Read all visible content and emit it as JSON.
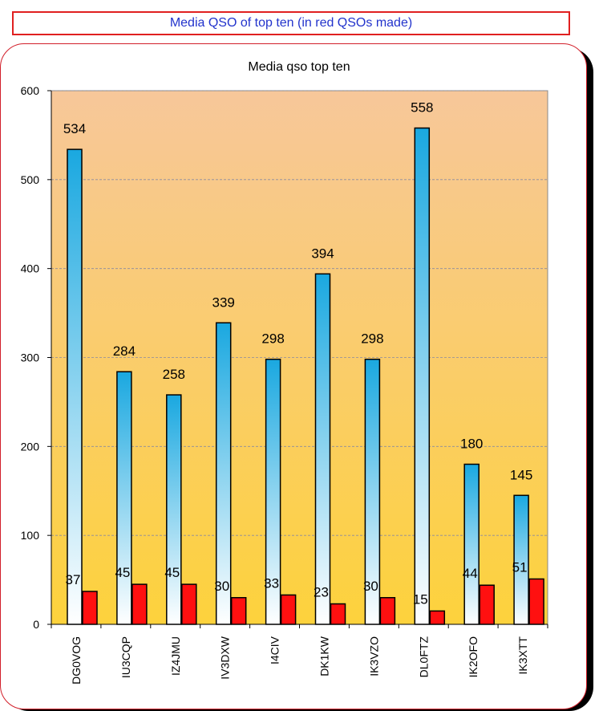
{
  "banner": {
    "text": "Media QSO of top ten (in red QSOs made)"
  },
  "colors": {
    "banner_text": "#2233cc",
    "banner_border": "#e02020",
    "frame_border": "#d21f2a",
    "plot_bg_top": "#f7c79a",
    "plot_bg_bottom": "#fdd23c",
    "bar_blue_top": "#1aa8e0",
    "bar_blue_bottom": "#ffffff",
    "bar_red": "#ff1010"
  },
  "chart_data": {
    "type": "bar",
    "title": "Media qso top ten",
    "categories": [
      "DG0VOG",
      "IU3CQP",
      "IZ4JMU",
      "IV3DXW",
      "I4CIV",
      "DK1KW",
      "IK3VZO",
      "DL0FTZ",
      "IK2OFO",
      "IK3XTT"
    ],
    "series": [
      {
        "values": [
          534,
          284,
          258,
          339,
          298,
          394,
          298,
          558,
          180,
          145
        ]
      },
      {
        "values": [
          37,
          45,
          45,
          30,
          33,
          23,
          30,
          15,
          44,
          51
        ]
      }
    ],
    "ylim": [
      0,
      600
    ],
    "yticks": [
      "0",
      "100",
      "200",
      "300",
      "400",
      "500",
      "600"
    ],
    "grid": true,
    "legend": "none"
  }
}
